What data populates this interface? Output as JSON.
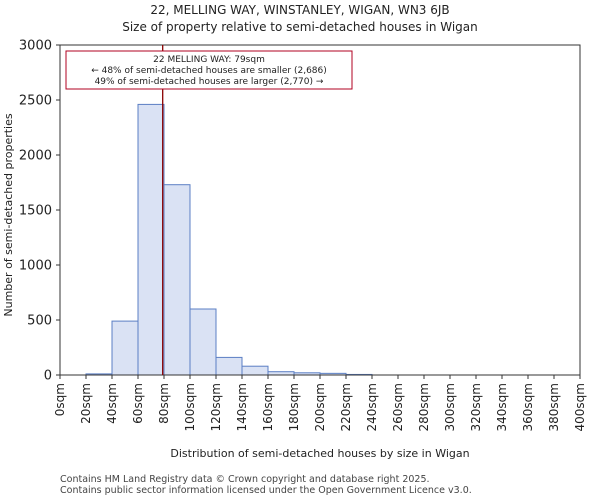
{
  "header": {
    "title": "22, MELLING WAY, WINSTANLEY, WIGAN, WN3 6JB",
    "subtitle": "Size of property relative to semi-detached houses in Wigan"
  },
  "chart_data": {
    "type": "bar",
    "xlabel": "Distribution of semi-detached houses by size in Wigan",
    "ylabel": "Number of semi-detached properties",
    "ylim": [
      0,
      3000
    ],
    "xlim": [
      0,
      400
    ],
    "y_ticks": [
      0,
      500,
      1000,
      1500,
      2000,
      2500,
      3000
    ],
    "x_tick_labels": [
      "0sqm",
      "20sqm",
      "40sqm",
      "60sqm",
      "80sqm",
      "100sqm",
      "120sqm",
      "140sqm",
      "160sqm",
      "180sqm",
      "200sqm",
      "220sqm",
      "240sqm",
      "260sqm",
      "280sqm",
      "300sqm",
      "320sqm",
      "340sqm",
      "360sqm",
      "380sqm",
      "400sqm"
    ],
    "bin_edges": [
      0,
      20,
      40,
      60,
      80,
      100,
      120,
      140,
      160,
      180,
      200,
      220,
      240,
      260,
      280,
      300,
      320,
      340,
      360,
      380,
      400
    ],
    "values": [
      0,
      10,
      490,
      2460,
      1730,
      600,
      160,
      80,
      30,
      20,
      15,
      5,
      0,
      0,
      0,
      0,
      0,
      0,
      0,
      0
    ],
    "marker": {
      "x": 79,
      "label": "22 MELLING WAY: 79sqm"
    },
    "annotation": {
      "line1": "22 MELLING WAY: 79sqm",
      "line2": "← 48% of semi-detached houses are smaller (2,686)",
      "line3": "49% of semi-detached houses are larger (2,770) →"
    },
    "colors": {
      "bar_fill": "#dae2f4",
      "bar_stroke": "#5b7fc4",
      "marker": "#8b0000",
      "annotation_border": "#b00020"
    }
  },
  "footer": {
    "line1": "Contains HM Land Registry data © Crown copyright and database right 2025.",
    "line2": "Contains public sector information licensed under the Open Government Licence v3.0."
  }
}
